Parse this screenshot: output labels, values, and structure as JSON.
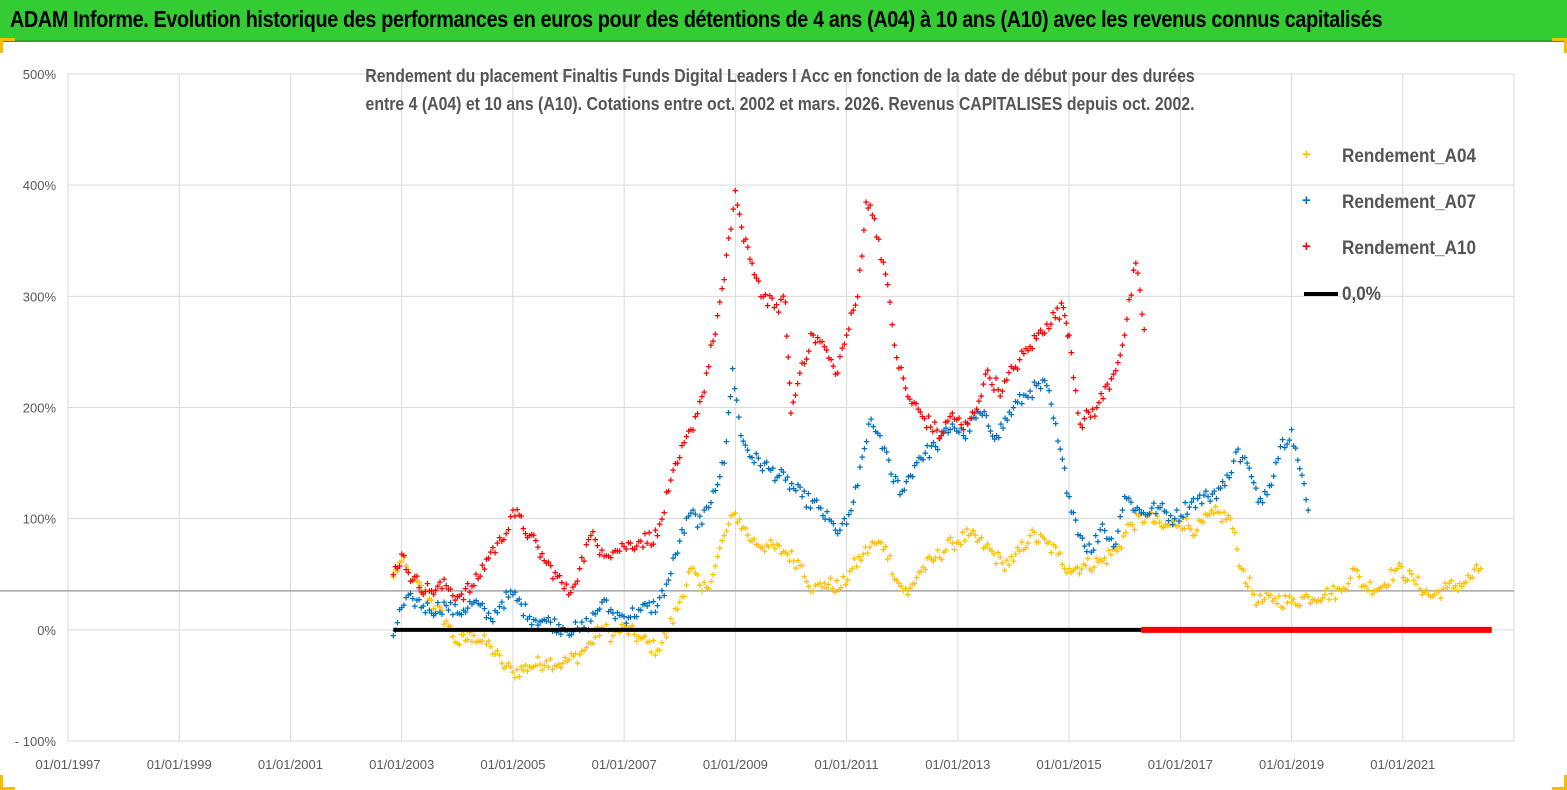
{
  "banner": {
    "title": "ADAM Informe. Evolution historique des performances en euros pour des détentions de 4 ans (A04) à 10 ans (A10) avec les revenus connus capitalisés"
  },
  "colors": {
    "banner": "#33cc33",
    "a04": "#ffc000",
    "a07": "#0070c0",
    "a10": "#ff0000",
    "zero": "#000000",
    "grid": "#d9d9d9",
    "axis_text": "#595959"
  },
  "chart_data": {
    "type": "scatter",
    "title_lines": [
      "Rendement du placement Finaltis Funds Digital Leaders I Acc en fonction de la date de début pour des durées",
      "entre 4 (A04) et 10 ans (A10).  Cotations entre oct. 2002 et mars. 2026. Revenus CAPITALISES depuis oct. 2002."
    ],
    "xlabel": "",
    "ylabel": "",
    "x_tick_labels": [
      "01/01/1997",
      "01/01/1999",
      "01/01/2001",
      "01/01/2003",
      "01/01/2005",
      "01/01/2007",
      "01/01/2009",
      "01/01/2011",
      "01/01/2013",
      "01/01/2015",
      "01/01/2017",
      "01/01/2019",
      "01/01/2021"
    ],
    "x_range": [
      1997.0,
      2023.0
    ],
    "y_tick_labels": [
      "- 100%",
      "0%",
      "100%",
      "200%",
      "300%",
      "400%",
      "500%"
    ],
    "y_ticks": [
      -100,
      0,
      100,
      200,
      300,
      400,
      500
    ],
    "ylim": [
      -100,
      500
    ],
    "reference_line_y": 35,
    "legend_position": "right",
    "series": [
      {
        "name": "Rendement_A04",
        "marker": "+",
        "points": [
          [
            2002.85,
            48
          ],
          [
            2003.0,
            62
          ],
          [
            2003.2,
            45
          ],
          [
            2003.5,
            28
          ],
          [
            2003.8,
            8
          ],
          [
            2004.0,
            -12
          ],
          [
            2004.3,
            -5
          ],
          [
            2004.6,
            -15
          ],
          [
            2004.8,
            -30
          ],
          [
            2005.0,
            -38
          ],
          [
            2005.3,
            -33
          ],
          [
            2005.6,
            -28
          ],
          [
            2005.9,
            -30
          ],
          [
            2006.2,
            -22
          ],
          [
            2006.4,
            -12
          ],
          [
            2006.6,
            2
          ],
          [
            2006.8,
            -5
          ],
          [
            2007.0,
            2
          ],
          [
            2007.3,
            -8
          ],
          [
            2007.6,
            -18
          ],
          [
            2007.8,
            0
          ],
          [
            2008.0,
            25
          ],
          [
            2008.2,
            55
          ],
          [
            2008.4,
            35
          ],
          [
            2008.6,
            50
          ],
          [
            2008.8,
            85
          ],
          [
            2009.0,
            105
          ],
          [
            2009.15,
            92
          ],
          [
            2009.3,
            80
          ],
          [
            2009.6,
            75
          ],
          [
            2009.9,
            70
          ],
          [
            2010.2,
            58
          ],
          [
            2010.4,
            35
          ],
          [
            2010.6,
            42
          ],
          [
            2010.9,
            38
          ],
          [
            2011.1,
            55
          ],
          [
            2011.3,
            68
          ],
          [
            2011.5,
            78
          ],
          [
            2011.7,
            75
          ],
          [
            2011.9,
            45
          ],
          [
            2012.1,
            32
          ],
          [
            2012.3,
            52
          ],
          [
            2012.6,
            65
          ],
          [
            2012.9,
            78
          ],
          [
            2013.2,
            85
          ],
          [
            2013.5,
            75
          ],
          [
            2013.8,
            60
          ],
          [
            2014.0,
            62
          ],
          [
            2014.3,
            85
          ],
          [
            2014.6,
            78
          ],
          [
            2014.8,
            68
          ],
          [
            2015.0,
            55
          ],
          [
            2015.3,
            58
          ],
          [
            2015.6,
            62
          ],
          [
            2015.9,
            75
          ],
          [
            2016.1,
            95
          ],
          [
            2016.4,
            102
          ],
          [
            2016.7,
            92
          ],
          [
            2017.0,
            98
          ],
          [
            2017.3,
            90
          ],
          [
            2017.6,
            105
          ],
          [
            2017.9,
            100
          ],
          [
            2018.1,
            55
          ],
          [
            2018.4,
            25
          ],
          [
            2018.7,
            28
          ],
          [
            2019.0,
            25
          ],
          [
            2019.3,
            30
          ],
          [
            2019.6,
            32
          ],
          [
            2019.9,
            35
          ],
          [
            2020.1,
            55
          ],
          [
            2020.3,
            40
          ],
          [
            2020.6,
            38
          ],
          [
            2020.9,
            55
          ],
          [
            2021.2,
            45
          ],
          [
            2021.5,
            30
          ],
          [
            2021.8,
            38
          ],
          [
            2022.1,
            42
          ],
          [
            2022.4,
            55
          ]
        ]
      },
      {
        "name": "Rendement_A07",
        "marker": "+",
        "points": [
          [
            2002.85,
            -5
          ],
          [
            2003.0,
            20
          ],
          [
            2003.2,
            28
          ],
          [
            2003.5,
            18
          ],
          [
            2003.8,
            22
          ],
          [
            2004.0,
            15
          ],
          [
            2004.3,
            25
          ],
          [
            2004.6,
            10
          ],
          [
            2004.8,
            25
          ],
          [
            2005.0,
            32
          ],
          [
            2005.3,
            12
          ],
          [
            2005.6,
            8
          ],
          [
            2005.9,
            2
          ],
          [
            2006.2,
            0
          ],
          [
            2006.4,
            8
          ],
          [
            2006.6,
            25
          ],
          [
            2006.8,
            15
          ],
          [
            2007.0,
            12
          ],
          [
            2007.3,
            18
          ],
          [
            2007.6,
            22
          ],
          [
            2007.8,
            45
          ],
          [
            2008.0,
            80
          ],
          [
            2008.2,
            105
          ],
          [
            2008.4,
            95
          ],
          [
            2008.6,
            125
          ],
          [
            2008.8,
            150
          ],
          [
            2008.95,
            235
          ],
          [
            2009.1,
            175
          ],
          [
            2009.3,
            155
          ],
          [
            2009.6,
            145
          ],
          [
            2009.9,
            135
          ],
          [
            2010.2,
            120
          ],
          [
            2010.5,
            110
          ],
          [
            2010.8,
            90
          ],
          [
            2011.0,
            95
          ],
          [
            2011.2,
            130
          ],
          [
            2011.4,
            185
          ],
          [
            2011.6,
            175
          ],
          [
            2011.8,
            140
          ],
          [
            2012.0,
            125
          ],
          [
            2012.3,
            155
          ],
          [
            2012.6,
            165
          ],
          [
            2012.9,
            185
          ],
          [
            2013.1,
            175
          ],
          [
            2013.4,
            195
          ],
          [
            2013.7,
            175
          ],
          [
            2014.0,
            200
          ],
          [
            2014.3,
            215
          ],
          [
            2014.6,
            220
          ],
          [
            2014.8,
            170
          ],
          [
            2015.0,
            120
          ],
          [
            2015.2,
            85
          ],
          [
            2015.4,
            70
          ],
          [
            2015.6,
            95
          ],
          [
            2015.8,
            75
          ],
          [
            2016.0,
            120
          ],
          [
            2016.3,
            105
          ],
          [
            2016.6,
            110
          ],
          [
            2016.9,
            100
          ],
          [
            2017.2,
            115
          ],
          [
            2017.5,
            120
          ],
          [
            2017.8,
            130
          ],
          [
            2018.0,
            160
          ],
          [
            2018.2,
            150
          ],
          [
            2018.4,
            115
          ],
          [
            2018.6,
            130
          ],
          [
            2018.8,
            165
          ],
          [
            2019.0,
            180
          ],
          [
            2019.15,
            145
          ],
          [
            2019.3,
            108
          ]
        ]
      },
      {
        "name": "Rendement_A10",
        "marker": "+",
        "points": [
          [
            2002.85,
            50
          ],
          [
            2003.0,
            68
          ],
          [
            2003.2,
            45
          ],
          [
            2003.5,
            35
          ],
          [
            2003.8,
            40
          ],
          [
            2004.0,
            30
          ],
          [
            2004.3,
            40
          ],
          [
            2004.6,
            70
          ],
          [
            2004.8,
            80
          ],
          [
            2005.0,
            108
          ],
          [
            2005.3,
            85
          ],
          [
            2005.6,
            60
          ],
          [
            2005.8,
            48
          ],
          [
            2006.0,
            32
          ],
          [
            2006.2,
            55
          ],
          [
            2006.4,
            85
          ],
          [
            2006.6,
            72
          ],
          [
            2006.8,
            70
          ],
          [
            2007.0,
            75
          ],
          [
            2007.3,
            80
          ],
          [
            2007.6,
            85
          ],
          [
            2007.8,
            125
          ],
          [
            2008.0,
            155
          ],
          [
            2008.2,
            180
          ],
          [
            2008.4,
            210
          ],
          [
            2008.6,
            260
          ],
          [
            2008.8,
            315
          ],
          [
            2009.0,
            395
          ],
          [
            2009.15,
            350
          ],
          [
            2009.3,
            330
          ],
          [
            2009.5,
            300
          ],
          [
            2009.7,
            290
          ],
          [
            2009.9,
            295
          ],
          [
            2010.0,
            195
          ],
          [
            2010.2,
            240
          ],
          [
            2010.4,
            265
          ],
          [
            2010.6,
            255
          ],
          [
            2010.8,
            230
          ],
          [
            2011.0,
            265
          ],
          [
            2011.2,
            300
          ],
          [
            2011.35,
            385
          ],
          [
            2011.5,
            370
          ],
          [
            2011.7,
            320
          ],
          [
            2011.9,
            245
          ],
          [
            2012.1,
            210
          ],
          [
            2012.4,
            190
          ],
          [
            2012.7,
            175
          ],
          [
            2012.9,
            195
          ],
          [
            2013.1,
            180
          ],
          [
            2013.3,
            195
          ],
          [
            2013.5,
            230
          ],
          [
            2013.8,
            215
          ],
          [
            2014.0,
            235
          ],
          [
            2014.3,
            255
          ],
          [
            2014.6,
            275
          ],
          [
            2014.9,
            290
          ],
          [
            2015.0,
            265
          ],
          [
            2015.2,
            185
          ],
          [
            2015.5,
            200
          ],
          [
            2015.8,
            230
          ],
          [
            2016.0,
            265
          ],
          [
            2016.2,
            330
          ],
          [
            2016.35,
            270
          ]
        ]
      },
      {
        "name": "0,0%",
        "marker": "line",
        "segments": [
          {
            "x": [
              2002.85,
              2016.3
            ],
            "y": 0,
            "color": "#000000"
          },
          {
            "x": [
              2016.3,
              2022.6
            ],
            "y": 0,
            "color": "#ff0000"
          }
        ]
      }
    ]
  }
}
